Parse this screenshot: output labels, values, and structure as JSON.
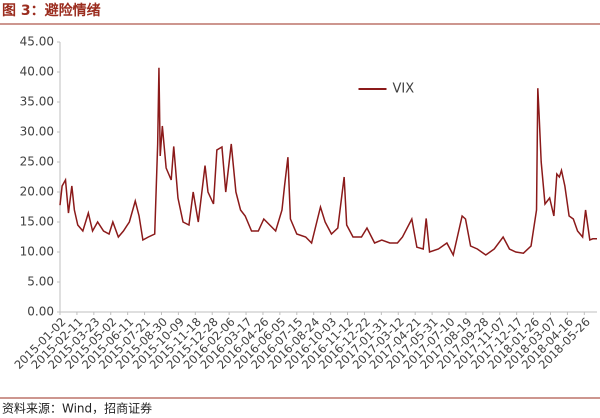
{
  "chart_data": {
    "type": "line",
    "title": "图 3：避险情绪",
    "source": "资料来源：Wind，招商证券",
    "legend": "top-center",
    "x": [
      "2015-01-02",
      "2015-01-07",
      "2015-01-15",
      "2015-01-22",
      "2015-01-30",
      "2015-02-05",
      "2015-02-13",
      "2015-02-25",
      "2015-03-10",
      "2015-03-20",
      "2015-04-01",
      "2015-04-15",
      "2015-04-28",
      "2015-05-07",
      "2015-05-20",
      "2015-06-01",
      "2015-06-15",
      "2015-06-29",
      "2015-07-08",
      "2015-07-17",
      "2015-07-30",
      "2015-08-14",
      "2015-08-21",
      "2015-08-24",
      "2015-08-27",
      "2015-09-01",
      "2015-09-10",
      "2015-09-22",
      "2015-09-28",
      "2015-10-08",
      "2015-10-20",
      "2015-11-03",
      "2015-11-13",
      "2015-11-25",
      "2015-12-11",
      "2015-12-18",
      "2015-12-31",
      "2016-01-08",
      "2016-01-20",
      "2016-01-29",
      "2016-02-11",
      "2016-02-22",
      "2016-03-04",
      "2016-03-15",
      "2016-03-30",
      "2016-04-15",
      "2016-04-28",
      "2016-05-12",
      "2016-05-26",
      "2016-06-10",
      "2016-06-16",
      "2016-06-24",
      "2016-06-30",
      "2016-07-15",
      "2016-08-05",
      "2016-08-19",
      "2016-09-09",
      "2016-09-20",
      "2016-10-05",
      "2016-10-20",
      "2016-11-04",
      "2016-11-10",
      "2016-11-25",
      "2016-12-15",
      "2016-12-28",
      "2017-01-15",
      "2017-02-01",
      "2017-02-20",
      "2017-03-10",
      "2017-03-22",
      "2017-04-13",
      "2017-04-25",
      "2017-05-10",
      "2017-05-17",
      "2017-05-25",
      "2017-06-15",
      "2017-07-05",
      "2017-07-20",
      "2017-08-10",
      "2017-08-18",
      "2017-08-30",
      "2017-09-15",
      "2017-10-05",
      "2017-10-25",
      "2017-11-15",
      "2017-11-30",
      "2017-12-15",
      "2018-01-02",
      "2018-01-20",
      "2018-02-02",
      "2018-02-05",
      "2018-02-08",
      "2018-02-13",
      "2018-02-22",
      "2018-03-05",
      "2018-03-15",
      "2018-03-22",
      "2018-03-28",
      "2018-04-02",
      "2018-04-10",
      "2018-04-20",
      "2018-04-30",
      "2018-05-10",
      "2018-05-22",
      "2018-05-29",
      "2018-06-08",
      "2018-06-15",
      "2018-06-25"
    ],
    "series": [
      {
        "name": "VIX",
        "color": "#8b1a1a",
        "values": [
          17.8,
          21,
          22,
          16.5,
          21,
          17,
          14.5,
          13.5,
          16.5,
          13.5,
          15,
          13.5,
          13,
          15,
          12.5,
          13.5,
          15,
          18.5,
          16,
          12,
          12.5,
          13,
          28,
          40.7,
          26,
          31,
          24,
          22,
          27.6,
          19,
          15,
          14.5,
          20,
          15,
          24.4,
          20,
          18,
          27,
          27.5,
          20,
          28,
          20,
          17,
          16,
          13.5,
          13.5,
          15.5,
          14.5,
          13.5,
          17,
          21,
          25.8,
          15.5,
          13,
          12.5,
          11.5,
          17.5,
          15,
          13,
          14,
          22.5,
          14.5,
          12.5,
          12.5,
          14,
          11.5,
          12,
          11.5,
          11.5,
          12.5,
          15.5,
          10.8,
          10.5,
          15.6,
          10,
          10.5,
          11.5,
          9.5,
          16,
          15.5,
          11,
          10.5,
          9.5,
          10.5,
          12.5,
          10.5,
          10,
          9.8,
          11,
          17,
          37.3,
          33,
          25,
          18,
          19,
          16,
          23,
          22.5,
          23.6,
          21,
          16,
          15.5,
          13.5,
          12.5,
          17,
          12,
          12.2,
          12.2
        ]
      }
    ],
    "xlim": [
      "2015-01-02",
      "2018-06-25"
    ],
    "xticks": [
      "2015-01-02",
      "2015-02-11",
      "2015-03-23",
      "2015-05-02",
      "2015-06-11",
      "2015-07-21",
      "2015-08-30",
      "2015-10-09",
      "2015-11-18",
      "2015-12-28",
      "2016-02-06",
      "2016-03-17",
      "2016-04-26",
      "2016-06-05",
      "2016-07-15",
      "2016-08-24",
      "2016-10-03",
      "2016-11-12",
      "2016-12-22",
      "2017-01-31",
      "2017-03-12",
      "2017-04-21",
      "2017-05-31",
      "2017-07-10",
      "2017-08-19",
      "2017-09-28",
      "2017-11-07",
      "2017-12-17",
      "2018-01-26",
      "2018-03-07",
      "2018-04-16",
      "2018-05-26"
    ],
    "ylim": [
      0,
      45
    ],
    "yticks": [
      {
        "value": 0,
        "label": "0.00"
      },
      {
        "value": 5,
        "label": "5.00"
      },
      {
        "value": 10,
        "label": "10.00"
      },
      {
        "value": 15,
        "label": "15.00"
      },
      {
        "value": 20,
        "label": "20.00"
      },
      {
        "value": 25,
        "label": "25.00"
      },
      {
        "value": 30,
        "label": "30.00"
      },
      {
        "value": 35,
        "label": "35.00"
      },
      {
        "value": 40,
        "label": "40.00"
      },
      {
        "value": 45,
        "label": "45.00"
      }
    ],
    "grid": false
  }
}
